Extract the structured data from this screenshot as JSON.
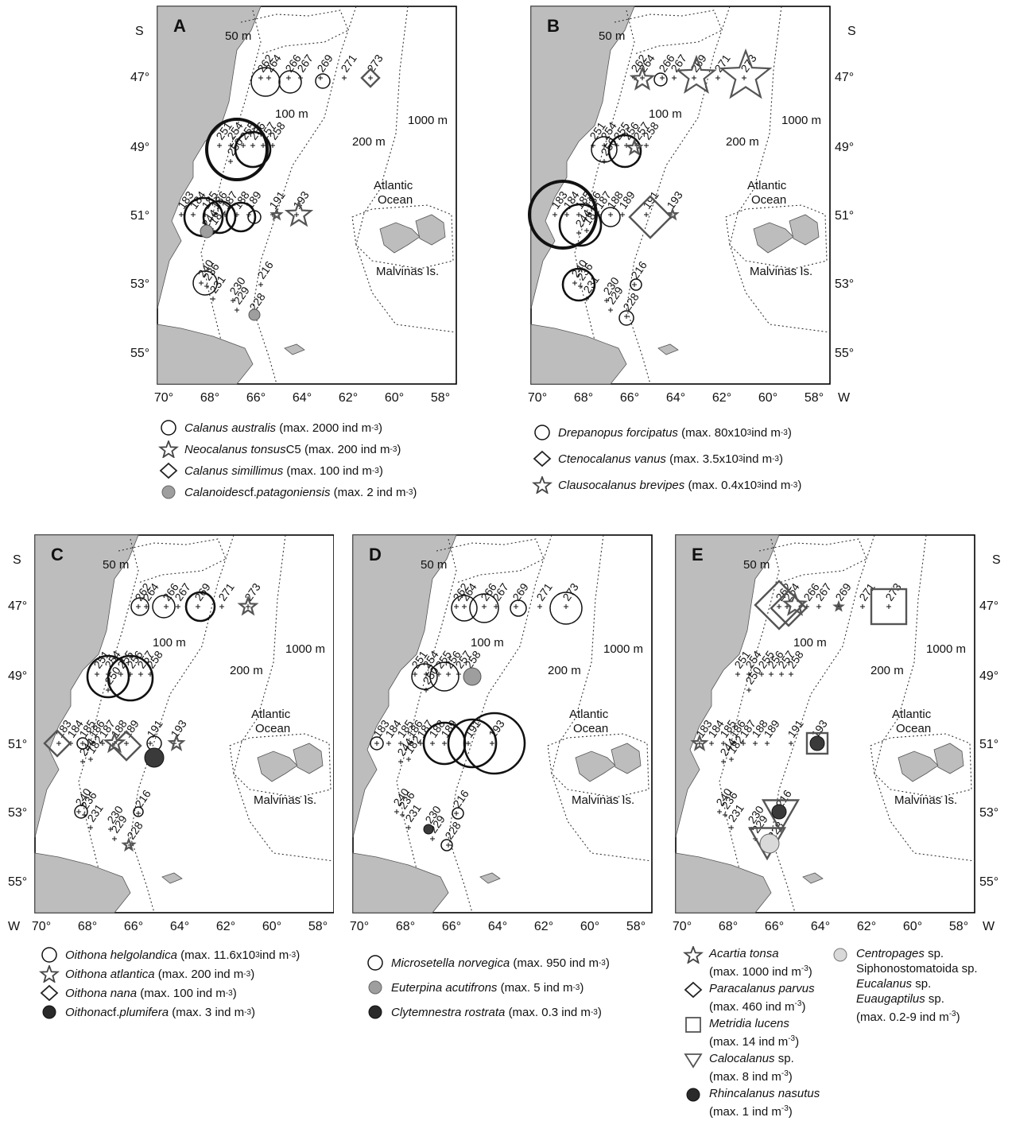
{
  "map": {
    "lat_labels": [
      "47°",
      "49°",
      "51°",
      "53°",
      "55°"
    ],
    "lon_labels": [
      "70°",
      "68°",
      "66°",
      "64°",
      "62°",
      "60°",
      "58°"
    ],
    "hemisphere_lat": "S",
    "hemisphere_lon": "W",
    "isobaths": [
      "50 m",
      "100 m",
      "200 m",
      "1000 m"
    ],
    "ocean_label_1": "Atlantic",
    "ocean_label_2": "Ocean",
    "islands_label": "Malvinas Is.",
    "stations": [
      "262",
      "264",
      "266",
      "267",
      "269",
      "271",
      "273",
      "251",
      "254",
      "255",
      "256",
      "257",
      "258",
      "250",
      "183",
      "184",
      "185",
      "186",
      "187",
      "188",
      "189",
      "191",
      "193",
      "244",
      "182",
      "240",
      "236",
      "231",
      "230",
      "229",
      "228",
      "216"
    ]
  },
  "colors": {
    "land": "#bdbdbd",
    "grey_fill": "#9e9e9e",
    "dark_fill": "#3a3a3a",
    "light_fill": "#d9d9d9"
  },
  "panels": [
    {
      "id": "A",
      "label": "A",
      "legend": [
        {
          "symbol": "circle-icon",
          "name": "Calanus australis",
          "max": "(max. 2000 ind m",
          "exp": "-3",
          "close": ")"
        },
        {
          "symbol": "star-icon",
          "name": "Neocalanus tonsus",
          "suffix": " C5",
          "max": "(max. 200 ind m",
          "exp": "-3",
          "close": ")"
        },
        {
          "symbol": "diamond-icon",
          "name": "Calanus simillimus",
          "max": "(max. 100 ind m",
          "exp": "-3",
          "close": ")"
        },
        {
          "symbol": "grey-circle-icon",
          "name": "Calanoides",
          "suffix": " cf. ",
          "name2": "patagoniensis",
          "max": "(max. 2 ind m",
          "exp": "-3",
          "close": ")"
        }
      ]
    },
    {
      "id": "B",
      "label": "B",
      "legend": [
        {
          "symbol": "circle-icon",
          "name": "Drepanopus forcipatus",
          "max": "(max. 80x10",
          "sup1": "3",
          "max2": " ind m",
          "exp": "-3",
          "close": ")"
        },
        {
          "symbol": "diamond-icon",
          "name": "Ctenocalanus vanus",
          "max": "(max. 3.5x10",
          "sup1": "3",
          "max2": " ind m",
          "exp": "-3",
          "close": ")"
        },
        {
          "symbol": "star-icon",
          "name": "Clausocalanus brevipes",
          "max": "(max. 0.4x10",
          "sup1": "3",
          "max2": " ind m",
          "exp": "-3",
          "close": ")"
        }
      ]
    },
    {
      "id": "C",
      "label": "C",
      "legend": [
        {
          "symbol": "circle-icon",
          "name": "Oithona helgolandica",
          "max": "(max. 11.6x10",
          "sup1": "3",
          "max2": " ind m",
          "exp": "-3",
          "close": ")"
        },
        {
          "symbol": "star-icon",
          "name": "Oithona atlantica",
          "max": "(max. 200 ind m",
          "exp": "-3",
          "close": ")"
        },
        {
          "symbol": "diamond-icon",
          "name": "Oithona nana",
          "max": "(max. 100 ind m",
          "exp": "-3",
          "close": ")"
        },
        {
          "symbol": "dark-circle-icon",
          "name": "Oithona",
          "suffix": " cf. ",
          "name2": "plumifera",
          "max": "(max. 3 ind m",
          "exp": "-3",
          "close": ")"
        }
      ]
    },
    {
      "id": "D",
      "label": "D",
      "legend": [
        {
          "symbol": "circle-icon",
          "name": "Microsetella norvegica",
          "max": "(max. 950 ind m",
          "exp": "-3",
          "close": ")"
        },
        {
          "symbol": "grey-circle-icon",
          "name": "Euterpina acutifrons",
          "max": "(max. 5 ind m",
          "exp": "-3",
          "close": ")"
        },
        {
          "symbol": "dark-circle-icon",
          "name": "Clytemnestra rostrata",
          "max": "(max. 0.3 ind m",
          "exp": "-3",
          "close": ")"
        }
      ]
    },
    {
      "id": "E",
      "label": "E",
      "legend": [
        {
          "symbol": "star-icon",
          "name": "Acartia tonsa",
          "max": "(max. 1000 ind m",
          "exp": "-3",
          "close": ")"
        },
        {
          "symbol": "diamond-icon",
          "name": "Paracalanus parvus",
          "max": "(max. 460 ind m",
          "exp": "-3",
          "close": ")"
        },
        {
          "symbol": "square-icon",
          "name": "Metridia lucens",
          "max": "(max. 14 ind m",
          "exp": "-3",
          "close": ")"
        },
        {
          "symbol": "triangle-icon",
          "name": "Calocalanus",
          "suffix": " sp.",
          "max": "(max. 8 ind m",
          "exp": "-3",
          "close": ")"
        },
        {
          "symbol": "dark-circle-icon",
          "name": "Rhincalanus nasutus",
          "max": "(max. 1 ind m",
          "exp": "-3",
          "close": ")"
        },
        {
          "symbol": "light-circle-icon",
          "name": "Centropages",
          "suffix": " sp.",
          "line2": "Siphonostomatoida sp.",
          "line3name": "Eucalanus",
          "line3suffix": " sp.",
          "line4name": "Euaugaptilus",
          "line4suffix": " sp.",
          "max": "(max. 0.2-9 ind m",
          "exp": "-3",
          "close": ")"
        }
      ]
    }
  ]
}
